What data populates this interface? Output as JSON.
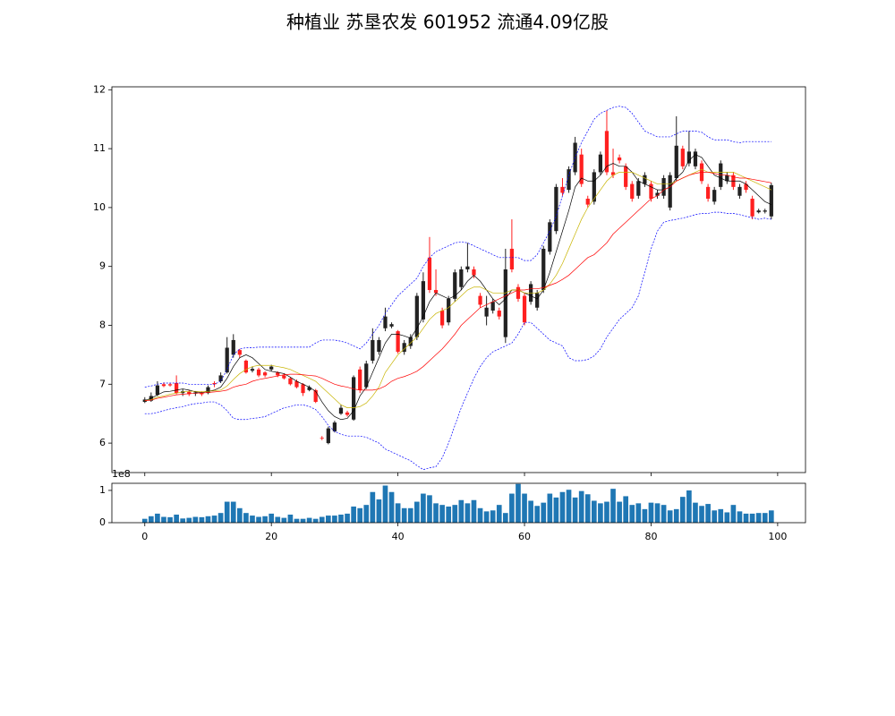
{
  "chart_data": {
    "type": "candlestick",
    "title": "种植业 苏垦农发 601952 流通4.09亿股",
    "up_color": "#222222",
    "down_color": "#ff2020",
    "x": [
      0,
      1,
      2,
      3,
      4,
      5,
      6,
      7,
      8,
      9,
      10,
      11,
      12,
      13,
      14,
      15,
      16,
      17,
      18,
      19,
      20,
      21,
      22,
      23,
      24,
      25,
      26,
      27,
      28,
      29,
      30,
      31,
      32,
      33,
      34,
      35,
      36,
      37,
      38,
      39,
      40,
      41,
      42,
      43,
      44,
      45,
      46,
      47,
      48,
      49,
      50,
      51,
      52,
      53,
      54,
      55,
      56,
      57,
      58,
      59,
      60,
      61,
      62,
      63,
      64,
      65,
      66,
      67,
      68,
      69,
      70,
      71,
      72,
      73,
      74,
      75,
      76,
      77,
      78,
      79,
      80,
      81,
      82,
      83,
      84,
      85,
      86,
      87,
      88,
      89,
      90,
      91,
      92,
      93,
      94,
      95,
      96,
      97,
      98,
      99
    ],
    "open": [
      6.7,
      6.72,
      6.82,
      7.0,
      7.0,
      7.02,
      6.85,
      6.87,
      6.84,
      6.85,
      6.85,
      7.02,
      7.05,
      7.2,
      7.5,
      7.58,
      7.4,
      7.23,
      7.25,
      7.2,
      7.25,
      7.2,
      7.15,
      7.1,
      7.05,
      7.0,
      6.9,
      6.9,
      6.09,
      6.0,
      6.2,
      6.5,
      6.52,
      6.4,
      7.25,
      6.95,
      7.4,
      7.55,
      7.95,
      7.98,
      7.9,
      7.55,
      7.65,
      7.8,
      8.1,
      9.15,
      8.6,
      8.25,
      8.05,
      8.45,
      8.65,
      8.95,
      8.95,
      8.5,
      8.15,
      8.25,
      8.25,
      7.8,
      9.3,
      8.65,
      8.5,
      8.4,
      8.3,
      8.6,
      9.25,
      9.6,
      10.35,
      10.3,
      10.6,
      10.9,
      10.15,
      10.1,
      10.6,
      11.3,
      10.6,
      10.85,
      10.7,
      10.4,
      10.2,
      10.4,
      10.4,
      10.2,
      10.2,
      10.0,
      10.5,
      11.0,
      10.75,
      10.7,
      10.75,
      10.35,
      10.1,
      10.35,
      10.45,
      10.55,
      10.2,
      10.4,
      10.15,
      9.92,
      9.93,
      9.85
    ],
    "high": [
      6.78,
      6.86,
      7.05,
      7.03,
      7.02,
      7.15,
      6.92,
      6.9,
      6.88,
      6.88,
      6.98,
      7.05,
      7.2,
      7.8,
      7.85,
      7.6,
      7.42,
      7.3,
      7.28,
      7.22,
      7.33,
      7.22,
      7.18,
      7.12,
      7.08,
      7.02,
      6.98,
      6.92,
      6.12,
      6.28,
      6.38,
      6.65,
      6.55,
      7.15,
      7.3,
      7.4,
      7.95,
      7.8,
      8.3,
      8.05,
      7.92,
      7.75,
      7.85,
      8.55,
      8.9,
      9.5,
      8.95,
      8.3,
      8.5,
      8.95,
      9.0,
      9.4,
      9.0,
      8.55,
      8.5,
      8.45,
      8.3,
      9.3,
      9.8,
      8.7,
      8.55,
      8.75,
      8.6,
      9.35,
      9.8,
      10.4,
      10.5,
      10.7,
      11.2,
      11.0,
      10.2,
      10.65,
      10.95,
      11.65,
      11.0,
      10.9,
      10.75,
      10.45,
      10.5,
      10.6,
      10.45,
      10.3,
      10.55,
      10.6,
      11.55,
      11.05,
      11.3,
      11.0,
      10.8,
      10.4,
      10.35,
      10.8,
      10.6,
      10.6,
      10.4,
      10.45,
      10.2,
      9.98,
      9.98,
      10.42
    ],
    "low": [
      6.68,
      6.7,
      6.8,
      6.95,
      6.96,
      6.83,
      6.8,
      6.8,
      6.8,
      6.8,
      6.83,
      6.95,
      7.02,
      7.18,
      7.45,
      7.45,
      7.18,
      7.2,
      7.12,
      7.12,
      7.22,
      7.12,
      7.08,
      6.98,
      6.93,
      6.8,
      6.88,
      6.68,
      6.05,
      5.98,
      6.18,
      6.48,
      6.45,
      6.38,
      6.85,
      6.92,
      7.35,
      7.5,
      7.9,
      7.95,
      7.52,
      7.5,
      7.6,
      7.75,
      8.05,
      8.55,
      8.5,
      7.95,
      8.0,
      8.4,
      8.6,
      8.9,
      8.8,
      8.3,
      8.0,
      8.2,
      8.1,
      7.7,
      8.9,
      8.4,
      8.0,
      8.35,
      8.25,
      8.55,
      9.2,
      9.55,
      10.2,
      10.25,
      10.55,
      10.35,
      10.0,
      10.05,
      10.55,
      10.55,
      10.5,
      10.75,
      10.3,
      10.1,
      10.15,
      10.35,
      10.1,
      10.15,
      10.15,
      9.95,
      10.45,
      10.65,
      10.7,
      10.65,
      10.4,
      10.1,
      10.05,
      10.3,
      10.4,
      10.3,
      10.15,
      10.25,
      9.8,
      9.9,
      9.9,
      9.8
    ],
    "close": [
      6.74,
      6.8,
      6.98,
      6.97,
      6.98,
      6.85,
      6.88,
      6.83,
      6.86,
      6.83,
      6.95,
      7.0,
      7.15,
      7.62,
      7.75,
      7.5,
      7.2,
      7.26,
      7.15,
      7.15,
      7.3,
      7.15,
      7.1,
      7.0,
      6.95,
      6.85,
      6.95,
      6.7,
      6.08,
      6.25,
      6.35,
      6.6,
      6.48,
      7.12,
      6.9,
      7.35,
      7.75,
      7.75,
      8.15,
      8.02,
      7.55,
      7.7,
      7.8,
      8.5,
      8.75,
      8.6,
      8.55,
      8.0,
      8.45,
      8.9,
      8.95,
      9.0,
      8.85,
      8.35,
      8.3,
      8.4,
      8.15,
      8.95,
      8.95,
      8.45,
      8.05,
      8.7,
      8.55,
      9.3,
      9.75,
      10.35,
      10.25,
      10.65,
      11.1,
      10.4,
      10.05,
      10.6,
      10.9,
      10.6,
      10.55,
      10.8,
      10.35,
      10.15,
      10.45,
      10.55,
      10.15,
      10.25,
      10.5,
      10.55,
      11.05,
      10.7,
      10.95,
      10.95,
      10.45,
      10.15,
      10.3,
      10.75,
      10.55,
      10.35,
      10.35,
      10.3,
      9.85,
      9.95,
      9.95,
      10.38
    ],
    "lines": [
      {
        "color": "#000000",
        "dashed": false,
        "values": [
          6.72,
          6.76,
          6.82,
          6.87,
          6.88,
          6.9,
          6.92,
          6.9,
          6.87,
          6.86,
          6.88,
          6.9,
          6.95,
          7.1,
          7.3,
          7.45,
          7.5,
          7.45,
          7.35,
          7.25,
          7.22,
          7.2,
          7.18,
          7.12,
          7.05,
          7.0,
          6.95,
          6.88,
          6.7,
          6.55,
          6.45,
          6.4,
          6.42,
          6.55,
          6.8,
          6.95,
          7.2,
          7.45,
          7.7,
          7.85,
          7.85,
          7.82,
          7.78,
          7.95,
          8.15,
          8.4,
          8.55,
          8.5,
          8.45,
          8.5,
          8.6,
          8.75,
          8.85,
          8.75,
          8.6,
          8.45,
          8.35,
          8.45,
          8.6,
          8.6,
          8.55,
          8.5,
          8.45,
          8.6,
          8.9,
          9.25,
          9.6,
          9.95,
          10.35,
          10.5,
          10.45,
          10.45,
          10.55,
          10.7,
          10.75,
          10.7,
          10.7,
          10.6,
          10.45,
          10.4,
          10.35,
          10.3,
          10.3,
          10.35,
          10.5,
          10.6,
          10.8,
          10.9,
          10.85,
          10.7,
          10.55,
          10.5,
          10.45,
          10.45,
          10.45,
          10.4,
          10.3,
          10.2,
          10.1,
          10.05
        ]
      },
      {
        "color": "#c8b400",
        "dashed": false,
        "values": [
          6.72,
          6.74,
          6.78,
          6.8,
          6.83,
          6.85,
          6.87,
          6.88,
          6.88,
          6.87,
          6.88,
          6.89,
          6.9,
          6.97,
          7.08,
          7.18,
          7.25,
          7.3,
          7.32,
          7.32,
          7.32,
          7.3,
          7.28,
          7.25,
          7.2,
          7.15,
          7.1,
          7.05,
          6.95,
          6.85,
          6.75,
          6.65,
          6.6,
          6.6,
          6.62,
          6.68,
          6.8,
          6.95,
          7.2,
          7.35,
          7.5,
          7.6,
          7.7,
          7.8,
          7.95,
          8.1,
          8.2,
          8.25,
          8.3,
          8.4,
          8.5,
          8.6,
          8.65,
          8.65,
          8.6,
          8.55,
          8.55,
          8.55,
          8.6,
          8.6,
          8.55,
          8.55,
          8.55,
          8.6,
          8.7,
          8.85,
          9.05,
          9.3,
          9.55,
          9.8,
          10.0,
          10.15,
          10.3,
          10.45,
          10.55,
          10.6,
          10.6,
          10.6,
          10.55,
          10.5,
          10.45,
          10.4,
          10.4,
          10.4,
          10.45,
          10.5,
          10.55,
          10.6,
          10.65,
          10.6,
          10.6,
          10.6,
          10.6,
          10.6,
          10.55,
          10.5,
          10.45,
          10.4,
          10.35,
          10.3
        ]
      },
      {
        "color": "#ff0000",
        "dashed": false,
        "values": [
          6.72,
          6.73,
          6.76,
          6.78,
          6.8,
          6.82,
          6.83,
          6.84,
          6.85,
          6.85,
          6.86,
          6.87,
          6.88,
          6.9,
          6.95,
          6.98,
          7.0,
          7.05,
          7.08,
          7.1,
          7.12,
          7.14,
          7.16,
          7.17,
          7.17,
          7.16,
          7.15,
          7.14,
          7.1,
          7.05,
          7.0,
          6.97,
          6.95,
          6.92,
          6.9,
          6.9,
          6.9,
          6.92,
          6.97,
          7.05,
          7.1,
          7.13,
          7.17,
          7.22,
          7.3,
          7.4,
          7.5,
          7.6,
          7.72,
          7.85,
          8.0,
          8.1,
          8.2,
          8.3,
          8.35,
          8.4,
          8.45,
          8.5,
          8.55,
          8.6,
          8.6,
          8.62,
          8.62,
          8.64,
          8.68,
          8.72,
          8.78,
          8.85,
          8.95,
          9.05,
          9.15,
          9.2,
          9.3,
          9.4,
          9.55,
          9.65,
          9.75,
          9.85,
          9.95,
          10.05,
          10.15,
          10.2,
          10.3,
          10.35,
          10.45,
          10.5,
          10.55,
          10.58,
          10.6,
          10.6,
          10.58,
          10.55,
          10.55,
          10.52,
          10.5,
          10.5,
          10.48,
          10.46,
          10.44,
          10.42
        ]
      },
      {
        "color": "#0000ff",
        "dashed": true,
        "values": [
          6.95,
          6.97,
          7.0,
          7.02,
          7.02,
          7.02,
          7.02,
          7.0,
          7.0,
          7.0,
          7.0,
          7.0,
          7.05,
          7.25,
          7.5,
          7.6,
          7.62,
          7.62,
          7.63,
          7.63,
          7.63,
          7.63,
          7.63,
          7.63,
          7.63,
          7.63,
          7.63,
          7.7,
          7.75,
          7.75,
          7.75,
          7.73,
          7.7,
          7.65,
          7.6,
          7.7,
          7.85,
          8.0,
          8.2,
          8.35,
          8.5,
          8.6,
          8.7,
          8.8,
          9.0,
          9.15,
          9.25,
          9.3,
          9.35,
          9.4,
          9.42,
          9.4,
          9.35,
          9.3,
          9.25,
          9.2,
          9.15,
          9.15,
          9.15,
          9.15,
          9.1,
          9.1,
          9.2,
          9.4,
          9.6,
          9.85,
          10.2,
          10.55,
          10.85,
          11.1,
          11.3,
          11.5,
          11.6,
          11.65,
          11.7,
          11.72,
          11.7,
          11.6,
          11.45,
          11.3,
          11.25,
          11.2,
          11.2,
          11.2,
          11.25,
          11.3,
          11.3,
          11.3,
          11.28,
          11.2,
          11.15,
          11.15,
          11.15,
          11.12,
          11.1,
          11.12,
          11.12,
          11.12,
          11.12,
          11.12
        ]
      },
      {
        "color": "#0000ff",
        "dashed": true,
        "values": [
          6.5,
          6.5,
          6.52,
          6.55,
          6.58,
          6.6,
          6.62,
          6.65,
          6.67,
          6.68,
          6.7,
          6.7,
          6.65,
          6.55,
          6.42,
          6.4,
          6.4,
          6.42,
          6.43,
          6.45,
          6.5,
          6.55,
          6.6,
          6.62,
          6.65,
          6.65,
          6.62,
          6.57,
          6.45,
          6.3,
          6.2,
          6.15,
          6.12,
          6.12,
          6.12,
          6.1,
          6.05,
          6.0,
          5.9,
          5.85,
          5.8,
          5.75,
          5.7,
          5.62,
          5.55,
          5.58,
          5.6,
          5.75,
          6.0,
          6.3,
          6.6,
          6.85,
          7.1,
          7.3,
          7.45,
          7.55,
          7.6,
          7.65,
          7.7,
          7.85,
          8.05,
          8.05,
          7.95,
          7.85,
          7.75,
          7.7,
          7.65,
          7.45,
          7.4,
          7.4,
          7.42,
          7.48,
          7.6,
          7.8,
          7.95,
          8.1,
          8.2,
          8.3,
          8.5,
          8.9,
          9.3,
          9.6,
          9.75,
          9.78,
          9.8,
          9.82,
          9.85,
          9.88,
          9.9,
          9.9,
          9.92,
          9.92,
          9.9,
          9.9,
          9.88,
          9.85,
          9.83,
          9.8,
          9.82,
          9.8
        ]
      }
    ],
    "xlim": [
      -5.2,
      104.4
    ],
    "xticks": [
      0,
      20,
      40,
      60,
      80,
      100
    ],
    "ylim": [
      5.5,
      12.05
    ],
    "yticks": [
      6,
      7,
      8,
      9,
      10,
      11,
      12
    ],
    "volume": {
      "color": "#1f77b4",
      "offset_label": "1e8",
      "ylim": [
        0,
        122000000
      ],
      "yticks": [
        0,
        {
          "value": 100000000,
          "label": "1"
        }
      ],
      "values": [
        12000000,
        20000000,
        28000000,
        18000000,
        17000000,
        25000000,
        13000000,
        15000000,
        18000000,
        17000000,
        20000000,
        22000000,
        30000000,
        65000000,
        65000000,
        45000000,
        30000000,
        22000000,
        18000000,
        20000000,
        28000000,
        18000000,
        15000000,
        25000000,
        12000000,
        12000000,
        15000000,
        12000000,
        18000000,
        22000000,
        22000000,
        25000000,
        28000000,
        50000000,
        45000000,
        55000000,
        95000000,
        72000000,
        115000000,
        95000000,
        60000000,
        45000000,
        45000000,
        65000000,
        90000000,
        85000000,
        60000000,
        55000000,
        50000000,
        55000000,
        70000000,
        60000000,
        70000000,
        45000000,
        35000000,
        38000000,
        55000000,
        30000000,
        90000000,
        120000000,
        90000000,
        68000000,
        52000000,
        62000000,
        90000000,
        78000000,
        95000000,
        102000000,
        78000000,
        98000000,
        88000000,
        68000000,
        60000000,
        65000000,
        105000000,
        65000000,
        82000000,
        55000000,
        60000000,
        42000000,
        62000000,
        60000000,
        55000000,
        38000000,
        42000000,
        80000000,
        100000000,
        62000000,
        52000000,
        58000000,
        38000000,
        42000000,
        32000000,
        55000000,
        35000000,
        28000000,
        28000000,
        30000000,
        30000000,
        38000000
      ]
    }
  }
}
